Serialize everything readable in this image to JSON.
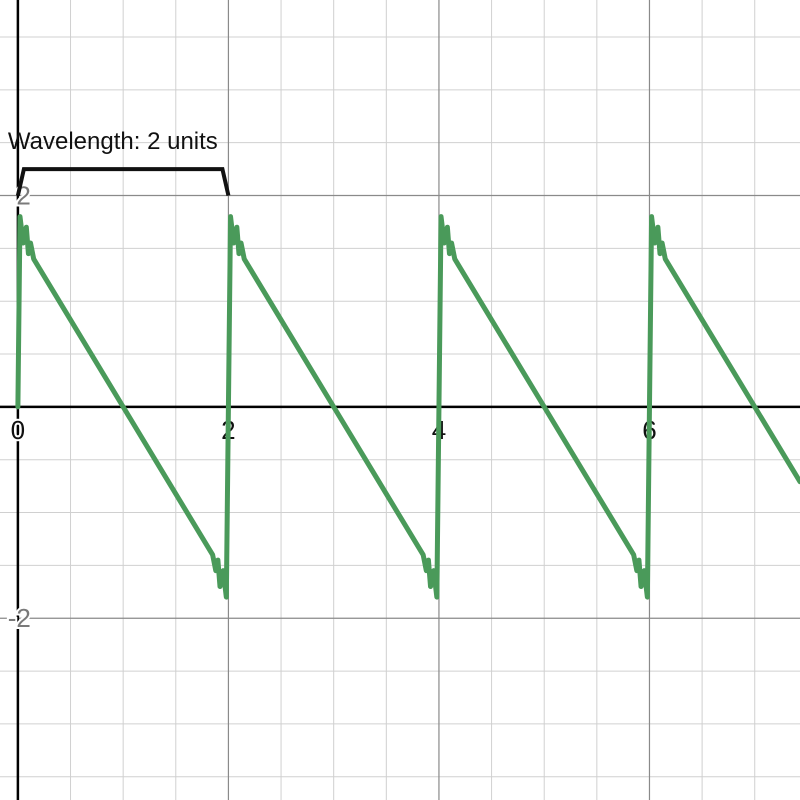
{
  "chart_data": {
    "type": "line",
    "title": "",
    "xlabel": "",
    "ylabel": "",
    "xlim": [
      -0.17,
      7.43
    ],
    "ylim": [
      -3.72,
      3.85
    ],
    "grid": true,
    "major_grid_step": 2,
    "minor_grid_step": 0.5,
    "x_tick_labels": [
      {
        "value": 0,
        "label": "0"
      },
      {
        "value": 2,
        "label": "2"
      },
      {
        "value": 4,
        "label": "4"
      },
      {
        "value": 6,
        "label": "6"
      }
    ],
    "y_tick_labels": [
      {
        "value": 2,
        "label": "2"
      },
      {
        "value": -2,
        "label": "-2"
      }
    ],
    "series": [
      {
        "color": "#4a9a5a",
        "function": "sawtooth (Fourier approximation with Gibbs overshoot)",
        "period": 2,
        "x": [
          0,
          0.02,
          0.05,
          0.08,
          0.1,
          0.12,
          0.15,
          1.0,
          1.85,
          1.88,
          1.9,
          1.92,
          1.95,
          1.98,
          2.0
        ],
        "y": [
          0.0,
          1.8,
          1.55,
          1.7,
          1.45,
          1.55,
          1.4,
          0.0,
          -1.4,
          -1.55,
          -1.45,
          -1.7,
          -1.55,
          -1.8,
          0.0
        ]
      }
    ],
    "annotations": [
      {
        "text": "Wavelength: 2 units",
        "x_start": 0,
        "x_end": 2,
        "y": 2.25
      }
    ]
  },
  "colors": {
    "curve": "#4a9a5a",
    "axis": "#000000",
    "grid_major": "#8a8a8a",
    "grid_minor": "#d0d0d0",
    "tick_label": "#7a7a7a",
    "bracket": "#111111"
  }
}
